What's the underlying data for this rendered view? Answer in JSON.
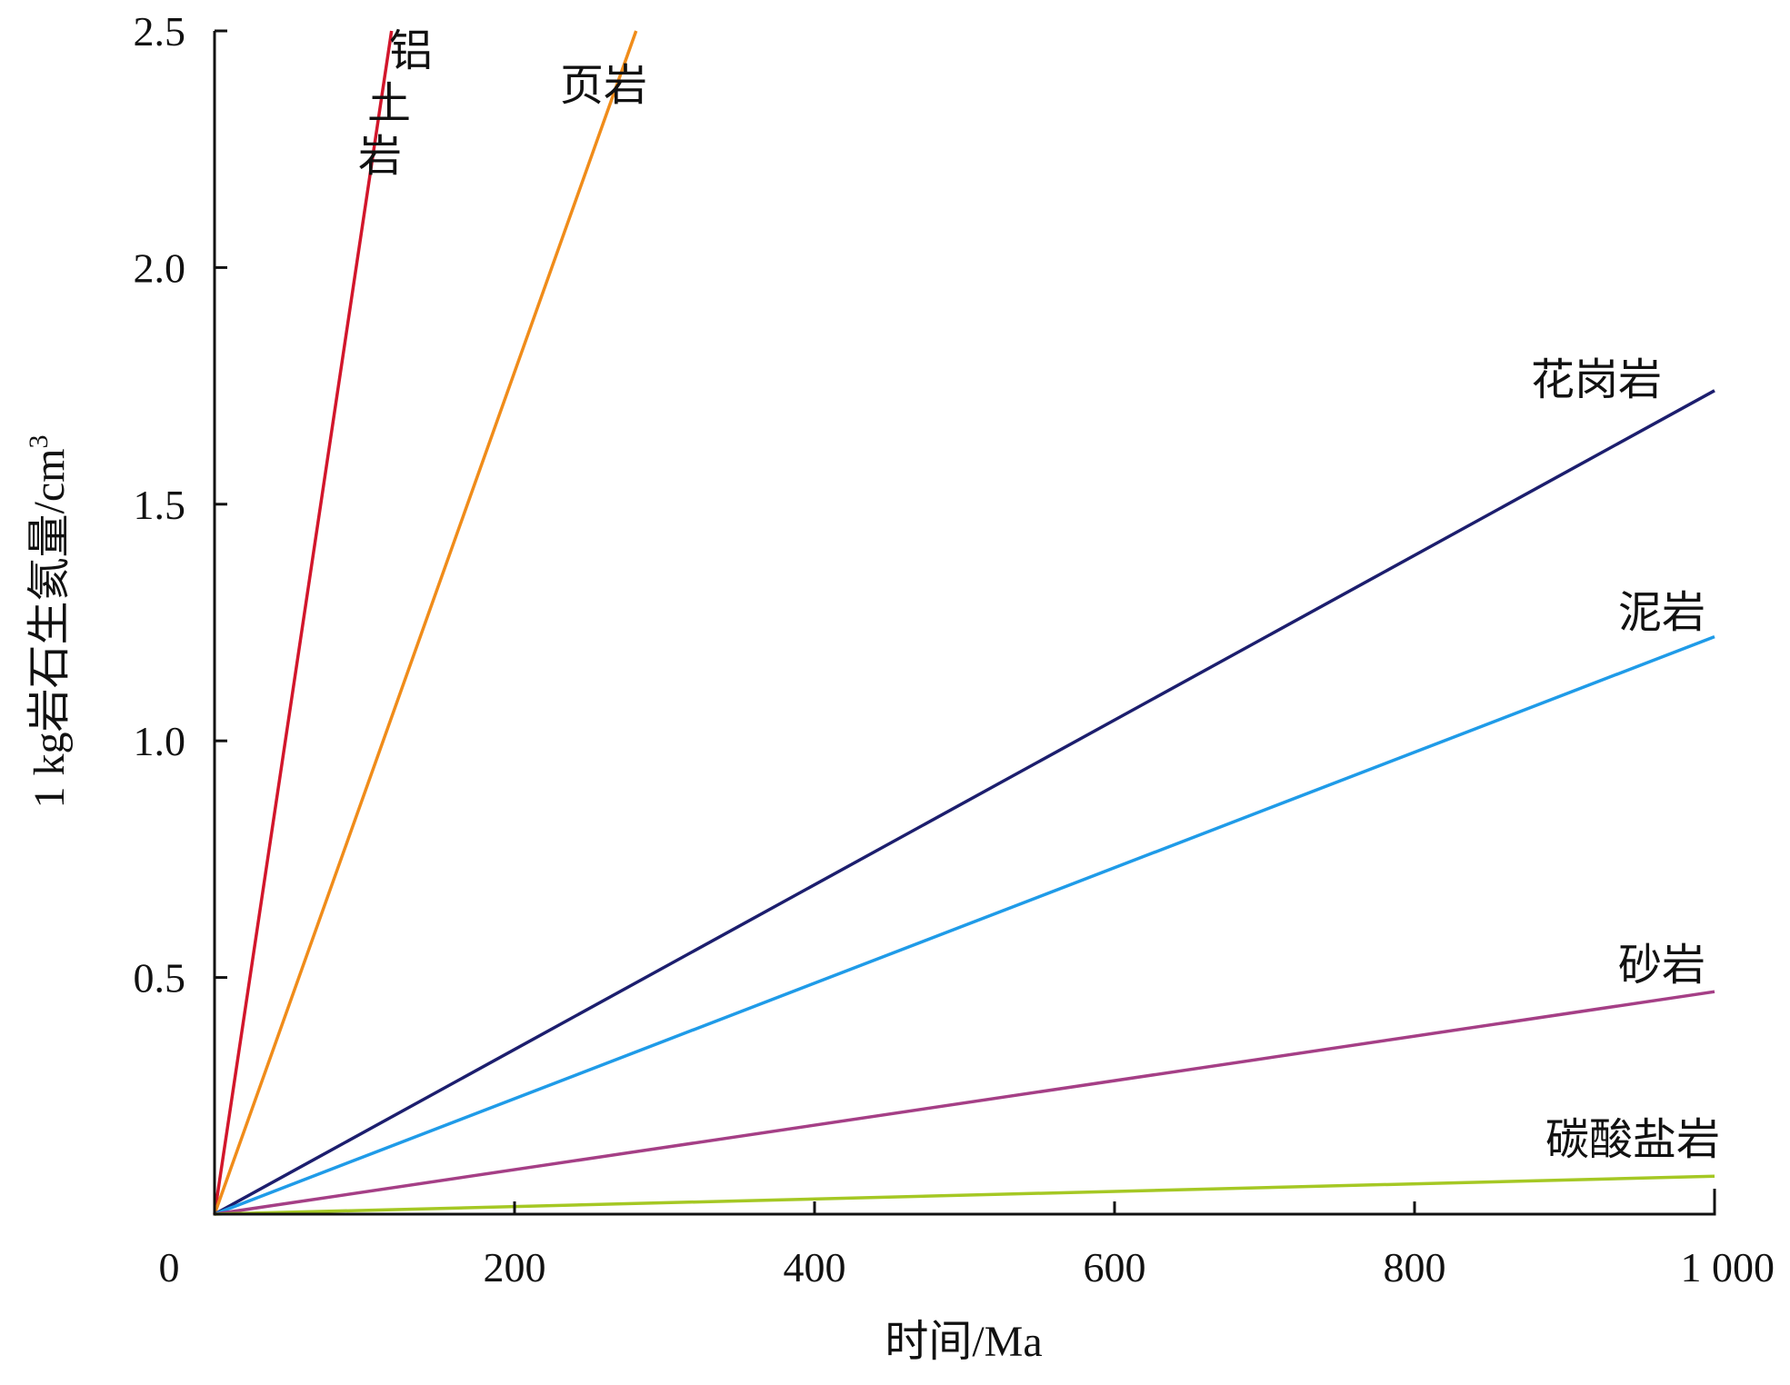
{
  "chart_data": {
    "type": "line",
    "xlabel": "时间/Ma",
    "ylabel": "1 kg岩石生氦量/cm",
    "ylabel_sup": "3",
    "xlim": [
      0,
      1000
    ],
    "ylim": [
      0,
      2.5
    ],
    "x_ticks": [
      {
        "value": 0,
        "label": "0"
      },
      {
        "value": 200,
        "label": "200"
      },
      {
        "value": 400,
        "label": "400"
      },
      {
        "value": 600,
        "label": "600"
      },
      {
        "value": 800,
        "label": "800"
      },
      {
        "value": 1000,
        "label": "1 000"
      }
    ],
    "y_ticks": [
      {
        "value": 0.5,
        "label": "0.5"
      },
      {
        "value": 1.0,
        "label": "1.0"
      },
      {
        "value": 1.5,
        "label": "1.5"
      },
      {
        "value": 2.0,
        "label": "2.0"
      },
      {
        "value": 2.5,
        "label": "2.5"
      }
    ],
    "grid": false,
    "series": [
      {
        "name": "铝土岩",
        "color": "#d2162b",
        "vertical": true,
        "points": [
          [
            0,
            0
          ],
          [
            118,
            2.5
          ]
        ]
      },
      {
        "name": "页岩",
        "color": "#f08c1a",
        "vertical": false,
        "points": [
          [
            0,
            0
          ],
          [
            281,
            2.5
          ]
        ]
      },
      {
        "name": "花岗岩",
        "color": "#1c1e6e",
        "vertical": false,
        "points": [
          [
            0,
            0
          ],
          [
            1000,
            1.74
          ]
        ]
      },
      {
        "name": "泥岩",
        "color": "#1f9be8",
        "vertical": false,
        "points": [
          [
            0,
            0
          ],
          [
            1000,
            1.22
          ]
        ]
      },
      {
        "name": "砂岩",
        "color": "#a53f86",
        "vertical": false,
        "points": [
          [
            0,
            0
          ],
          [
            1000,
            0.47
          ]
        ]
      },
      {
        "name": "碳酸盐岩",
        "color": "#a5c824",
        "vertical": false,
        "points": [
          [
            0,
            0
          ],
          [
            1000,
            0.08
          ]
        ]
      }
    ]
  }
}
